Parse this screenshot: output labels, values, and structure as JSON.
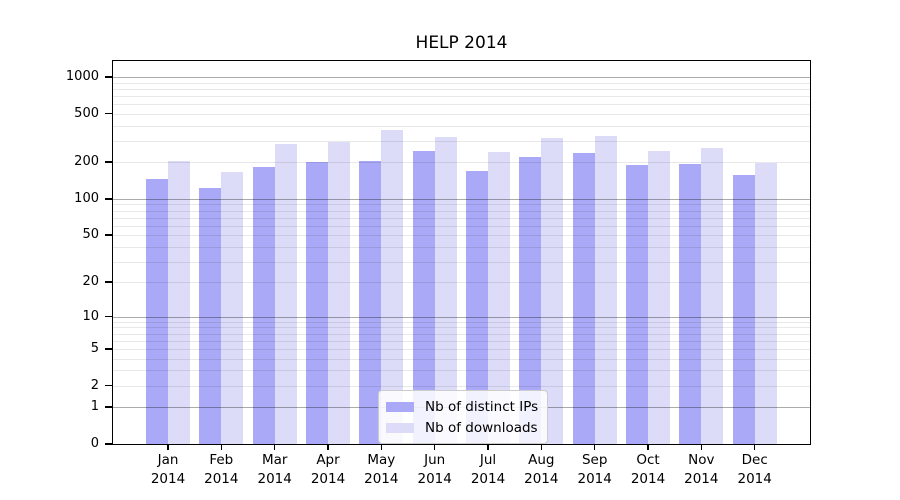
{
  "figure": {
    "background_color": "#ffffff",
    "axis_color": "#000000"
  },
  "chart_data": {
    "type": "bar",
    "title": "HELP 2014",
    "categories": [
      "Jan 2014",
      "Feb 2014",
      "Mar 2014",
      "Apr 2014",
      "May 2014",
      "Jun 2014",
      "Jul 2014",
      "Aug 2014",
      "Sep 2014",
      "Oct 2014",
      "Nov 2014",
      "Dec 2014"
    ],
    "series": [
      {
        "name": "Nb of distinct IPs",
        "key": "distinct-ips",
        "color": "#a9a9f7",
        "values": [
          145,
          122,
          183,
          201,
          204,
          247,
          170,
          219,
          240,
          191,
          195,
          158
        ]
      },
      {
        "name": "Nb of downloads",
        "key": "downloads",
        "color": "#dcdcf8",
        "values": [
          206,
          167,
          281,
          294,
          371,
          323,
          245,
          319,
          327,
          246,
          264,
          196
        ]
      }
    ],
    "xlabel": "",
    "ylabel": "",
    "y_axis": {
      "scale": "log1p",
      "ylim": [
        0,
        1350
      ],
      "tick_labels": [
        0,
        1,
        2,
        5,
        10,
        20,
        50,
        100,
        200,
        500,
        1000
      ],
      "major_gridlines": [
        1,
        10,
        100,
        1000
      ],
      "minor_gridlines": [
        2,
        3,
        4,
        5,
        6,
        7,
        8,
        9,
        20,
        30,
        40,
        50,
        60,
        70,
        80,
        90,
        200,
        300,
        400,
        500,
        600,
        700,
        800,
        900
      ]
    },
    "grid": "horizontal",
    "legend_position": "inside-bottom-center"
  }
}
